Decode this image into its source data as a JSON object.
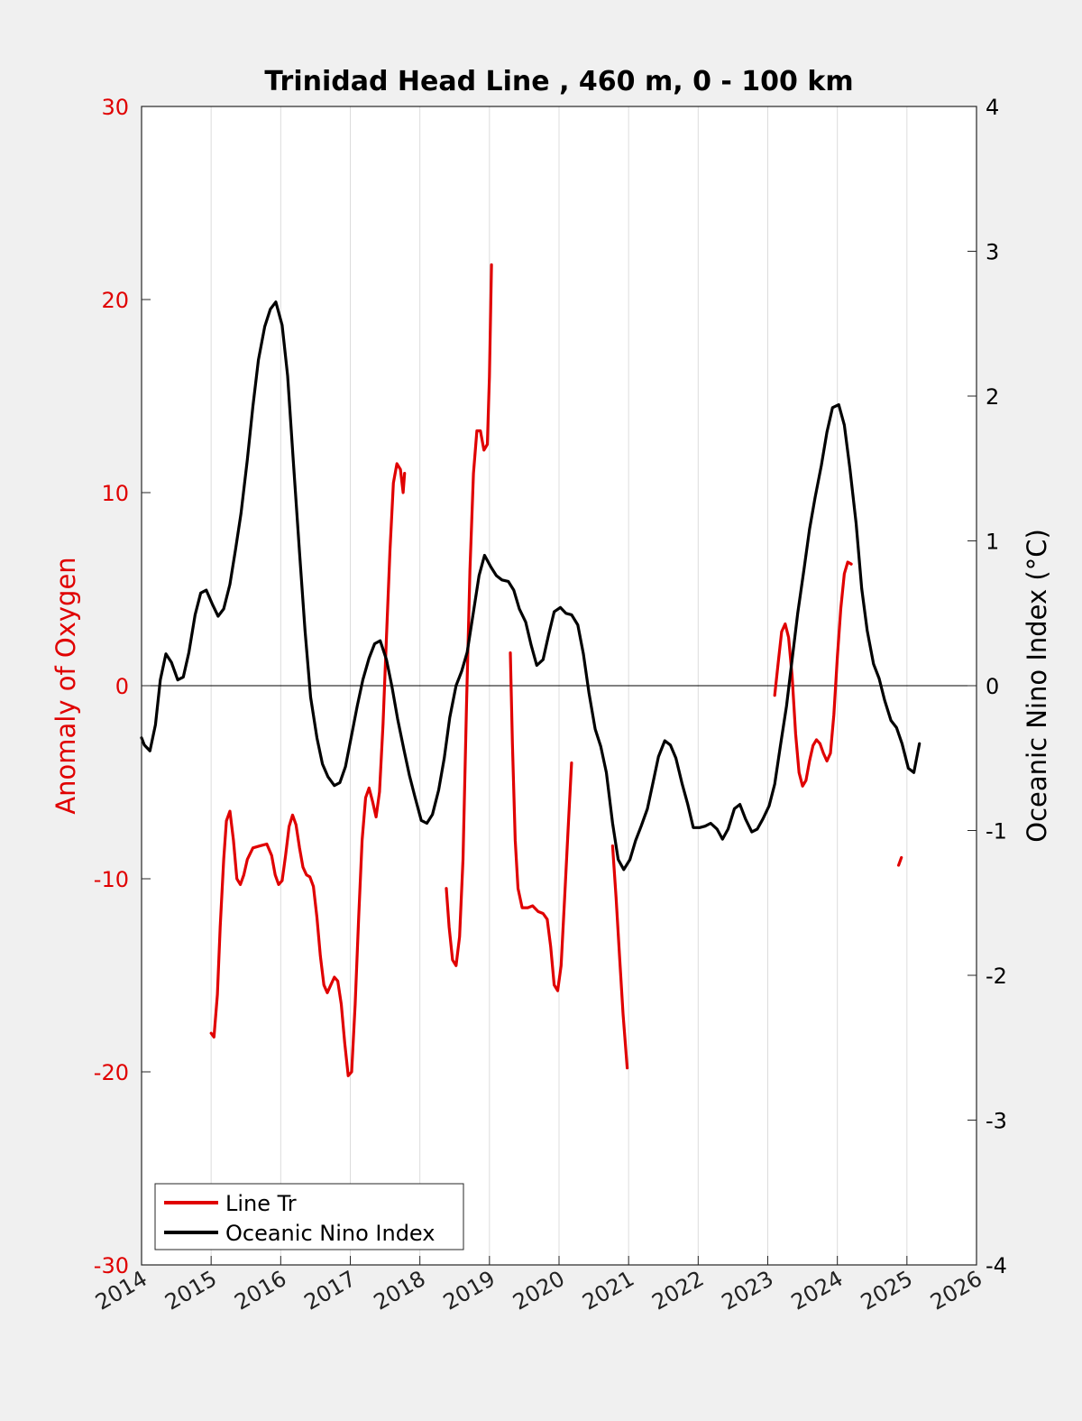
{
  "chart_data": {
    "type": "line",
    "title": "Trinidad Head Line , 460 m, 0 - 100 km",
    "ylabel": "Anomaly of Oxygen",
    "y2label": "Oceanic Nino Index (°C)",
    "xlim": [
      2014,
      2026
    ],
    "ylim": [
      -30,
      30
    ],
    "y2lim": [
      -4,
      4
    ],
    "x_ticks": [
      "2014",
      "2015",
      "2016",
      "2017",
      "2018",
      "2019",
      "2020",
      "2021",
      "2022",
      "2023",
      "2024",
      "2025",
      "2026"
    ],
    "y_ticks": [
      "-30",
      "-20",
      "-10",
      "0",
      "10",
      "20",
      "30"
    ],
    "y2_ticks": [
      "-4",
      "-3",
      "-2",
      "-1",
      "0",
      "1",
      "2",
      "3",
      "4"
    ],
    "grid": "x",
    "legend": "bottom-left",
    "colors": {
      "oxygen": "#e00000",
      "oni": "#000000"
    },
    "series": [
      {
        "name": "Line Tr",
        "axis": "left",
        "segments": [
          [
            [
              2015.0,
              -18.0
            ],
            [
              2015.04,
              -18.2
            ],
            [
              2015.09,
              -16
            ],
            [
              2015.13,
              -12.5
            ],
            [
              2015.18,
              -9
            ],
            [
              2015.22,
              -7
            ],
            [
              2015.27,
              -6.5
            ],
            [
              2015.32,
              -8
            ],
            [
              2015.37,
              -10
            ],
            [
              2015.42,
              -10.3
            ],
            [
              2015.47,
              -9.8
            ],
            [
              2015.52,
              -9
            ],
            [
              2015.6,
              -8.4
            ],
            [
              2015.7,
              -8.3
            ],
            [
              2015.8,
              -8.2
            ],
            [
              2015.87,
              -8.8
            ],
            [
              2015.92,
              -9.8
            ],
            [
              2015.97,
              -10.3
            ],
            [
              2016.02,
              -10.1
            ],
            [
              2016.07,
              -8.8
            ],
            [
              2016.12,
              -7.3
            ],
            [
              2016.17,
              -6.7
            ],
            [
              2016.22,
              -7.2
            ],
            [
              2016.27,
              -8.4
            ],
            [
              2016.32,
              -9.4
            ],
            [
              2016.37,
              -9.8
            ],
            [
              2016.42,
              -9.9
            ],
            [
              2016.47,
              -10.4
            ],
            [
              2016.52,
              -12
            ],
            [
              2016.57,
              -14
            ],
            [
              2016.62,
              -15.5
            ],
            [
              2016.67,
              -15.9
            ],
            [
              2016.72,
              -15.5
            ],
            [
              2016.77,
              -15.1
            ],
            [
              2016.82,
              -15.3
            ],
            [
              2016.87,
              -16.5
            ],
            [
              2016.92,
              -18.5
            ],
            [
              2016.97,
              -20.2
            ],
            [
              2017.02,
              -20.0
            ],
            [
              2017.07,
              -16.5
            ],
            [
              2017.12,
              -12
            ],
            [
              2017.17,
              -8
            ],
            [
              2017.22,
              -5.8
            ],
            [
              2017.27,
              -5.3
            ],
            [
              2017.32,
              -6
            ],
            [
              2017.37,
              -6.8
            ],
            [
              2017.42,
              -5.5
            ],
            [
              2017.47,
              -2
            ],
            [
              2017.52,
              2.5
            ],
            [
              2017.57,
              7
            ],
            [
              2017.62,
              10.5
            ],
            [
              2017.67,
              11.5
            ],
            [
              2017.72,
              11.2
            ],
            [
              2017.76,
              10.0
            ],
            [
              2017.78,
              11.0
            ]
          ],
          [
            [
              2018.38,
              -10.5
            ],
            [
              2018.42,
              -12.5
            ],
            [
              2018.47,
              -14.2
            ],
            [
              2018.52,
              -14.5
            ],
            [
              2018.57,
              -13
            ],
            [
              2018.62,
              -9
            ],
            [
              2018.67,
              -1
            ],
            [
              2018.72,
              6
            ],
            [
              2018.77,
              11
            ],
            [
              2018.82,
              13.2
            ],
            [
              2018.87,
              13.2
            ],
            [
              2018.92,
              12.2
            ],
            [
              2018.97,
              12.5
            ],
            [
              2019.0,
              16
            ],
            [
              2019.03,
              21.8
            ]
          ],
          [
            [
              2019.3,
              1.7
            ],
            [
              2019.33,
              -3
            ],
            [
              2019.37,
              -8
            ],
            [
              2019.41,
              -10.5
            ],
            [
              2019.47,
              -11.5
            ],
            [
              2019.55,
              -11.5
            ],
            [
              2019.62,
              -11.4
            ],
            [
              2019.7,
              -11.7
            ],
            [
              2019.77,
              -11.8
            ],
            [
              2019.83,
              -12.1
            ],
            [
              2019.88,
              -13.5
            ],
            [
              2019.93,
              -15.5
            ],
            [
              2019.98,
              -15.8
            ],
            [
              2020.03,
              -14.5
            ],
            [
              2020.08,
              -11
            ],
            [
              2020.13,
              -7.5
            ],
            [
              2020.18,
              -4.0
            ]
          ],
          [
            [
              2020.77,
              -8.3
            ],
            [
              2020.82,
              -11
            ],
            [
              2020.87,
              -14
            ],
            [
              2020.92,
              -17
            ],
            [
              2020.98,
              -19.8
            ]
          ],
          [
            [
              2023.1,
              -0.5
            ],
            [
              2023.15,
              1.2
            ],
            [
              2023.2,
              2.8
            ],
            [
              2023.25,
              3.2
            ],
            [
              2023.3,
              2.5
            ],
            [
              2023.35,
              0.5
            ],
            [
              2023.4,
              -2.5
            ],
            [
              2023.45,
              -4.5
            ],
            [
              2023.5,
              -5.2
            ],
            [
              2023.55,
              -4.9
            ],
            [
              2023.6,
              -3.9
            ],
            [
              2023.65,
              -3.1
            ],
            [
              2023.7,
              -2.8
            ],
            [
              2023.75,
              -3.0
            ],
            [
              2023.8,
              -3.5
            ],
            [
              2023.85,
              -3.9
            ],
            [
              2023.9,
              -3.5
            ],
            [
              2023.95,
              -1.5
            ],
            [
              2024.0,
              1.5
            ],
            [
              2024.05,
              4
            ],
            [
              2024.1,
              5.8
            ],
            [
              2024.15,
              6.4
            ],
            [
              2024.2,
              6.3
            ]
          ],
          [
            [
              2024.88,
              -9.3
            ],
            [
              2024.92,
              -8.9
            ]
          ]
        ]
      },
      {
        "name": "Oceanic Nino Index",
        "axis": "right",
        "segments": [
          [
            [
              2014.0,
              -0.36
            ],
            [
              2014.04,
              -0.41
            ],
            [
              2014.12,
              -0.45
            ],
            [
              2014.2,
              -0.27
            ],
            [
              2014.27,
              0.04
            ],
            [
              2014.35,
              0.22
            ],
            [
              2014.43,
              0.16
            ],
            [
              2014.52,
              0.04
            ],
            [
              2014.6,
              0.06
            ],
            [
              2014.68,
              0.23
            ],
            [
              2014.77,
              0.49
            ],
            [
              2014.85,
              0.64
            ],
            [
              2014.93,
              0.66
            ],
            [
              2015.02,
              0.56
            ],
            [
              2015.1,
              0.48
            ],
            [
              2015.18,
              0.53
            ],
            [
              2015.27,
              0.7
            ],
            [
              2015.35,
              0.94
            ],
            [
              2015.43,
              1.19
            ],
            [
              2015.52,
              1.56
            ],
            [
              2015.6,
              1.93
            ],
            [
              2015.68,
              2.25
            ],
            [
              2015.77,
              2.48
            ],
            [
              2015.85,
              2.6
            ],
            [
              2015.93,
              2.65
            ],
            [
              2016.02,
              2.49
            ],
            [
              2016.1,
              2.14
            ],
            [
              2016.18,
              1.56
            ],
            [
              2016.27,
              0.92
            ],
            [
              2016.35,
              0.38
            ],
            [
              2016.43,
              -0.08
            ],
            [
              2016.52,
              -0.36
            ],
            [
              2016.6,
              -0.54
            ],
            [
              2016.68,
              -0.63
            ],
            [
              2016.77,
              -0.69
            ],
            [
              2016.85,
              -0.67
            ],
            [
              2016.93,
              -0.56
            ],
            [
              2017.02,
              -0.34
            ],
            [
              2017.1,
              -0.14
            ],
            [
              2017.18,
              0.04
            ],
            [
              2017.27,
              0.19
            ],
            [
              2017.35,
              0.29
            ],
            [
              2017.43,
              0.31
            ],
            [
              2017.52,
              0.18
            ],
            [
              2017.6,
              -0.01
            ],
            [
              2017.68,
              -0.23
            ],
            [
              2017.77,
              -0.44
            ],
            [
              2017.85,
              -0.62
            ],
            [
              2017.93,
              -0.77
            ],
            [
              2018.02,
              -0.93
            ],
            [
              2018.1,
              -0.95
            ],
            [
              2018.18,
              -0.89
            ],
            [
              2018.27,
              -0.72
            ],
            [
              2018.35,
              -0.5
            ],
            [
              2018.43,
              -0.22
            ],
            [
              2018.52,
              0.0
            ],
            [
              2018.6,
              0.1
            ],
            [
              2018.68,
              0.23
            ],
            [
              2018.77,
              0.51
            ],
            [
              2018.85,
              0.76
            ],
            [
              2018.93,
              0.9
            ],
            [
              2019.02,
              0.82
            ],
            [
              2019.1,
              0.76
            ],
            [
              2019.18,
              0.73
            ],
            [
              2019.27,
              0.72
            ],
            [
              2019.35,
              0.66
            ],
            [
              2019.43,
              0.53
            ],
            [
              2019.52,
              0.44
            ],
            [
              2019.6,
              0.28
            ],
            [
              2019.68,
              0.14
            ],
            [
              2019.77,
              0.18
            ],
            [
              2019.85,
              0.35
            ],
            [
              2019.93,
              0.51
            ],
            [
              2020.02,
              0.54
            ],
            [
              2020.1,
              0.5
            ],
            [
              2020.18,
              0.49
            ],
            [
              2020.27,
              0.42
            ],
            [
              2020.35,
              0.22
            ],
            [
              2020.43,
              -0.05
            ],
            [
              2020.52,
              -0.3
            ],
            [
              2020.6,
              -0.42
            ],
            [
              2020.68,
              -0.6
            ],
            [
              2020.77,
              -0.95
            ],
            [
              2020.85,
              -1.2
            ],
            [
              2020.93,
              -1.27
            ],
            [
              2021.02,
              -1.2
            ],
            [
              2021.1,
              -1.07
            ],
            [
              2021.18,
              -0.97
            ],
            [
              2021.27,
              -0.85
            ],
            [
              2021.35,
              -0.67
            ],
            [
              2021.43,
              -0.49
            ],
            [
              2021.52,
              -0.38
            ],
            [
              2021.6,
              -0.41
            ],
            [
              2021.68,
              -0.5
            ],
            [
              2021.77,
              -0.68
            ],
            [
              2021.85,
              -0.82
            ],
            [
              2021.93,
              -0.98
            ],
            [
              2022.02,
              -0.98
            ],
            [
              2022.1,
              -0.97
            ],
            [
              2022.18,
              -0.95
            ],
            [
              2022.27,
              -0.99
            ],
            [
              2022.35,
              -1.06
            ],
            [
              2022.43,
              -0.99
            ],
            [
              2022.52,
              -0.85
            ],
            [
              2022.6,
              -0.82
            ],
            [
              2022.68,
              -0.92
            ],
            [
              2022.77,
              -1.01
            ],
            [
              2022.85,
              -0.99
            ],
            [
              2022.93,
              -0.92
            ],
            [
              2023.02,
              -0.83
            ],
            [
              2023.1,
              -0.68
            ],
            [
              2023.18,
              -0.42
            ],
            [
              2023.27,
              -0.14
            ],
            [
              2023.35,
              0.18
            ],
            [
              2023.43,
              0.5
            ],
            [
              2023.52,
              0.8
            ],
            [
              2023.6,
              1.08
            ],
            [
              2023.68,
              1.3
            ],
            [
              2023.77,
              1.52
            ],
            [
              2023.85,
              1.75
            ],
            [
              2023.93,
              1.92
            ],
            [
              2024.02,
              1.94
            ],
            [
              2024.1,
              1.8
            ],
            [
              2024.18,
              1.5
            ],
            [
              2024.27,
              1.12
            ],
            [
              2024.35,
              0.67
            ],
            [
              2024.43,
              0.38
            ],
            [
              2024.52,
              0.15
            ],
            [
              2024.6,
              0.05
            ],
            [
              2024.68,
              -0.1
            ],
            [
              2024.77,
              -0.24
            ],
            [
              2024.85,
              -0.29
            ],
            [
              2024.93,
              -0.4
            ],
            [
              2025.02,
              -0.57
            ],
            [
              2025.1,
              -0.6
            ],
            [
              2025.18,
              -0.4
            ]
          ]
        ]
      }
    ]
  }
}
